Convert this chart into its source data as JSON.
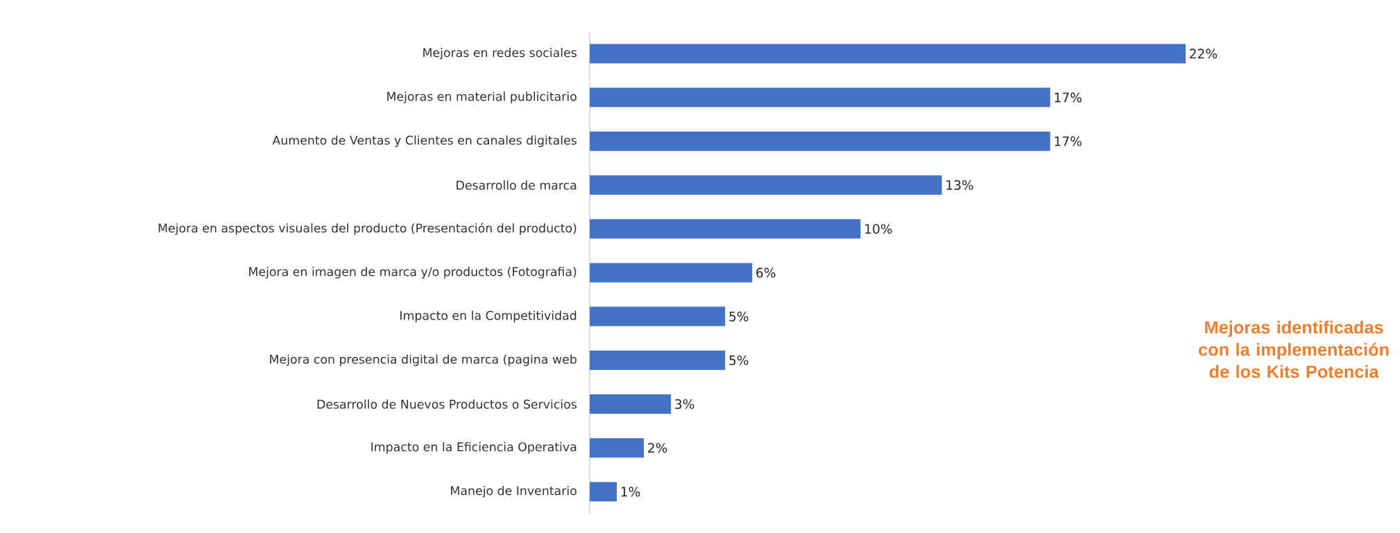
{
  "chart_data": {
    "type": "bar",
    "orientation": "horizontal",
    "title": "Mejoras identificadas con la implementación de los Kits Potencia",
    "categories": [
      "Mejoras en redes sociales",
      "Mejoras en material publicitario",
      "Aumento de Ventas y Clientes en canales digitales",
      "Desarrollo de marca",
      "Mejora en aspectos visuales del producto (Presentación del producto)",
      "Mejora en imagen de marca y/o productos (Fotografia)",
      "Impacto en la Competitividad",
      "Mejora con presencia digital de marca (pagina web",
      "Desarrollo de Nuevos Productos o Servicios",
      "Impacto en la Eficiencia Operativa",
      "Manejo de Inventario"
    ],
    "values": [
      22,
      17,
      17,
      13,
      10,
      6,
      5,
      5,
      3,
      2,
      1
    ],
    "value_labels": [
      "22%",
      "17%",
      "17%",
      "13%",
      "10%",
      "6%",
      "5%",
      "5%",
      "3%",
      "2%",
      "1%"
    ],
    "color": "#4472c4"
  }
}
